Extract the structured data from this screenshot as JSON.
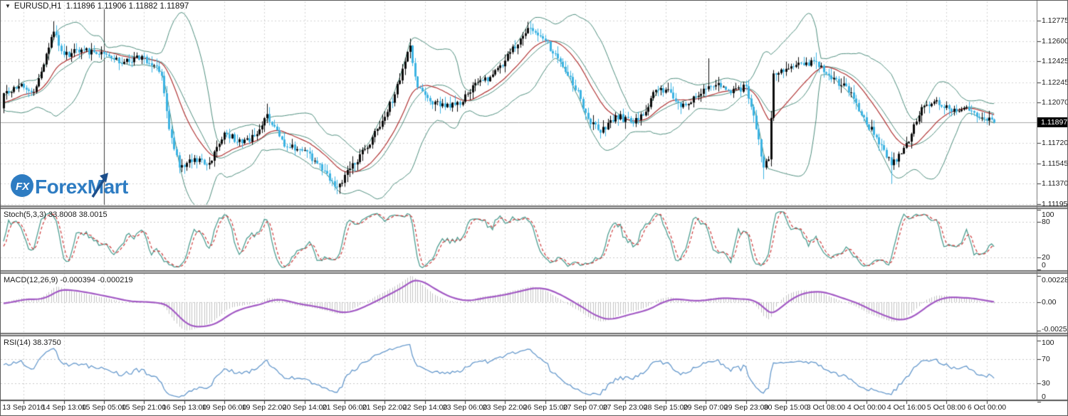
{
  "header": {
    "symbol": "EURUSD,H1",
    "quotes": "1.11896 1.11906 1.11882 1.11897"
  },
  "watermark": {
    "badge": "FX",
    "brand": "ForexMart"
  },
  "panels": {
    "stoch_label": "Stoch(5,3,3) 33.8008 38.0015",
    "macd_label": "MACD(12,26,9) -0.000394 -0.000219",
    "rsi_label": "RSI(14) 38.3750"
  },
  "axis": {
    "current_price": "1.11897",
    "price_ticks": [
      {
        "label": "1.12775",
        "value": 1.12775
      },
      {
        "label": "1.12600",
        "value": 1.126
      },
      {
        "label": "1.12425",
        "value": 1.12425
      },
      {
        "label": "1.12245",
        "value": 1.12245
      },
      {
        "label": "1.12070",
        "value": 1.1207
      },
      {
        "label": "1.11720",
        "value": 1.1172
      },
      {
        "label": "1.11545",
        "value": 1.11545
      },
      {
        "label": "1.11370",
        "value": 1.1137
      },
      {
        "label": "1.11195",
        "value": 1.11195
      }
    ],
    "stoch_ticks": [
      {
        "label": "100",
        "value": 100
      },
      {
        "label": "80",
        "value": 80
      },
      {
        "label": "20",
        "value": 20
      },
      {
        "label": "0",
        "value": 0
      }
    ],
    "macd_ticks": {
      "top": "0.002287",
      "zero": "0.00",
      "bottom": "-0.002549"
    },
    "rsi_ticks": [
      {
        "label": "100",
        "value": 100
      },
      {
        "label": "70",
        "value": 70
      },
      {
        "label": "30",
        "value": 30
      },
      {
        "label": "0",
        "value": 0
      }
    ]
  },
  "time_axis": {
    "labels": [
      "13 Sep 2016",
      "14 Sep 13:00",
      "15 Sep 05:00",
      "15 Sep 21:00",
      "16 Sep 13:00",
      "19 Sep 06:00",
      "19 Sep 22:00",
      "20 Sep 14:00",
      "21 Sep 06:00",
      "21 Sep 22:00",
      "22 Sep 14:00",
      "23 Sep 06:00",
      "23 Sep 22:00",
      "26 Sep 15:00",
      "27 Sep 07:00",
      "27 Sep 23:00",
      "28 Sep 15:00",
      "29 Sep 07:00",
      "29 Sep 23:00",
      "30 Sep 15:00",
      "3 Oct 08:00",
      "4 Oct 00:00",
      "4 Oct 16:00",
      "5 Oct 08:00",
      "6 Oct 00:00"
    ]
  },
  "colors": {
    "bull_candle": "#0b0b0b",
    "bear_candle": "#3cb3e2",
    "bollinger": "#4f8e7e",
    "red_ma": "#b03434",
    "stoch_main": "#4f9e92",
    "stoch_signal": "#cc3b3b",
    "macd_hist": "#c3c3c3",
    "macd_signal": "#a259c4",
    "rsi_line": "#6699cc",
    "grid": "#d2d2d2",
    "level_dash": "#c8c8c8",
    "current_line": "#a6a6a6",
    "separator": "#707070",
    "brand_blue": "#2e7cc2",
    "brand_dark": "#1d4f8c"
  },
  "chart_data": {
    "type": "candlestick",
    "symbol": "EURUSD",
    "timeframe": "H1",
    "ohlc_display": {
      "open": 1.11896,
      "high": 1.11906,
      "low": 1.11882,
      "close": 1.11897
    },
    "title": "EURUSD,H1 1.11896 1.11906 1.11882 1.11897",
    "y_axis": {
      "min_visible": 1.11165,
      "max_visible": 1.12873,
      "ticks": [
        1.12775,
        1.126,
        1.12425,
        1.12245,
        1.1207,
        1.1172,
        1.11545,
        1.1137,
        1.11195
      ],
      "current": 1.11897
    },
    "x_axis": {
      "bars": 396,
      "bars_per_label": 16,
      "first_label_bar": 8,
      "labels_see": "time_axis.labels"
    },
    "grid": true,
    "legend_position": "top-left-per-panel",
    "pre_bars": 40,
    "bars": 396,
    "seed": 42,
    "bar_spacing_px": 3.522,
    "price_keypoints": [
      [
        0,
        1.1215
      ],
      [
        6,
        1.1221
      ],
      [
        12,
        1.1216
      ],
      [
        20,
        1.1268,
        1.1277,
        null
      ],
      [
        24,
        1.1248
      ],
      [
        32,
        1.1252
      ],
      [
        40,
        1.1249
      ],
      [
        48,
        1.1242
      ],
      [
        55,
        1.1247
      ],
      [
        60,
        1.1239
      ],
      [
        63,
        1.123
      ],
      [
        66,
        1.1184
      ],
      [
        70,
        1.1151,
        null,
        1.1146
      ],
      [
        76,
        1.1159
      ],
      [
        82,
        1.1155
      ],
      [
        88,
        1.1181
      ],
      [
        95,
        1.1172
      ],
      [
        100,
        1.1178
      ],
      [
        105,
        1.1197,
        1.1206,
        null
      ],
      [
        112,
        1.1169
      ],
      [
        120,
        1.1166
      ],
      [
        128,
        1.1148
      ],
      [
        133,
        1.1134,
        null,
        1.1128
      ],
      [
        138,
        1.115
      ],
      [
        144,
        1.1167
      ],
      [
        150,
        1.1186
      ],
      [
        156,
        1.1214
      ],
      [
        162,
        1.1256,
        1.1262,
        null
      ],
      [
        165,
        1.122
      ],
      [
        170,
        1.1208
      ],
      [
        176,
        1.1203
      ],
      [
        182,
        1.1205
      ],
      [
        188,
        1.1224
      ],
      [
        194,
        1.1229
      ],
      [
        200,
        1.1243
      ],
      [
        206,
        1.1262
      ],
      [
        210,
        1.1271,
        1.1277,
        null
      ],
      [
        214,
        1.1264
      ],
      [
        220,
        1.1249
      ],
      [
        226,
        1.1229
      ],
      [
        230,
        1.121
      ],
      [
        233,
        1.1193
      ],
      [
        238,
        1.1181,
        null,
        1.1176
      ],
      [
        244,
        1.1196
      ],
      [
        250,
        1.119
      ],
      [
        256,
        1.1199
      ],
      [
        259,
        1.1216
      ],
      [
        264,
        1.1218
      ],
      [
        270,
        1.1203
      ],
      [
        276,
        1.1212
      ],
      [
        281,
        1.1221,
        1.1245,
        null
      ],
      [
        284,
        1.1222
      ],
      [
        290,
        1.1215
      ],
      [
        296,
        1.1221
      ],
      [
        300,
        1.1184
      ],
      [
        303,
        1.1151,
        null,
        1.1141
      ],
      [
        305,
        1.1158
      ],
      [
        307,
        1.1232
      ],
      [
        312,
        1.1236
      ],
      [
        318,
        1.1241
      ],
      [
        324,
        1.1242,
        1.125,
        null
      ],
      [
        330,
        1.1227
      ],
      [
        336,
        1.1221
      ],
      [
        342,
        1.1196
      ],
      [
        348,
        1.1177
      ],
      [
        354,
        1.1153,
        null,
        1.1137
      ],
      [
        358,
        1.1163
      ],
      [
        362,
        1.118
      ],
      [
        366,
        1.1203
      ],
      [
        372,
        1.1209
      ],
      [
        378,
        1.1199
      ],
      [
        384,
        1.1203
      ],
      [
        390,
        1.1194
      ],
      [
        395,
        1.11897
      ]
    ],
    "vertical_marker_bar": 40,
    "indicators": {
      "bollinger": {
        "period": 20,
        "deviation": 2,
        "applied_to": "close"
      },
      "red_ma": {
        "type": "lwma",
        "period": 24
      },
      "stochastic": {
        "k": 5,
        "d": 3,
        "slowing": 3,
        "levels": [
          20,
          80
        ],
        "scale": [
          0,
          100
        ],
        "current_main": 33.8008,
        "current_signal": 38.0015
      },
      "macd": {
        "fast": 12,
        "slow": 26,
        "signal": 9,
        "scale_top": 0.002287,
        "scale_bottom": -0.002549,
        "current_main": -0.000394,
        "current_signal": -0.000219
      },
      "rsi": {
        "period": 14,
        "levels": [
          30,
          70
        ],
        "scale": [
          0,
          100
        ],
        "current": 38.375
      }
    }
  }
}
